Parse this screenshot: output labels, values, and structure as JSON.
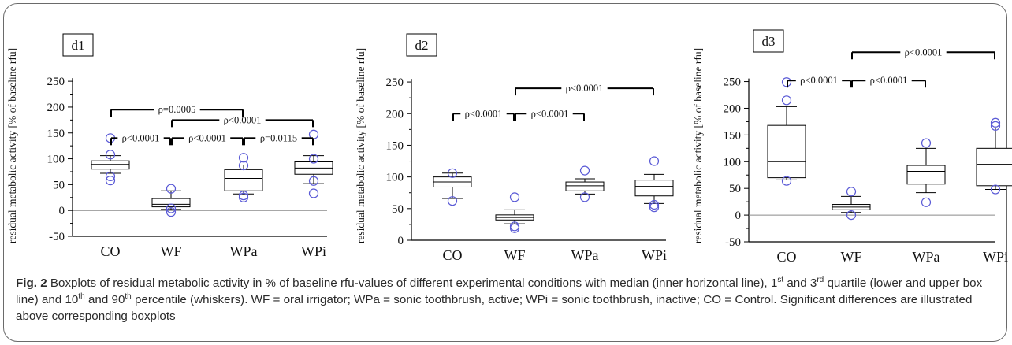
{
  "chart_data": [
    {
      "type": "boxplot",
      "panel_label": "d1",
      "ylabel": "residual metabolic activity [% of baseline rfu]",
      "ylim": [
        -50,
        270
      ],
      "yticks": [
        -50,
        0,
        50,
        100,
        150,
        200,
        250
      ],
      "categories": [
        "CO",
        "WF",
        "WPa",
        "WPi"
      ],
      "boxes": [
        {
          "category": "CO",
          "p10": 72,
          "q1": 80,
          "median": 89,
          "q3": 96,
          "p90": 106,
          "outliers": [
            140,
            108,
            58,
            66
          ]
        },
        {
          "category": "WF",
          "p10": 2,
          "q1": 7,
          "median": 12,
          "q3": 23,
          "p90": 38,
          "outliers": [
            42,
            -3,
            4
          ]
        },
        {
          "category": "WPa",
          "p10": 32,
          "q1": 38,
          "median": 62,
          "q3": 79,
          "p90": 88,
          "outliers": [
            102,
            87,
            25,
            29
          ]
        },
        {
          "category": "WPi",
          "p10": 52,
          "q1": 70,
          "median": 82,
          "q3": 94,
          "p90": 106,
          "outliers": [
            147,
            100,
            33,
            57
          ]
        }
      ],
      "significance": [
        {
          "from": "CO",
          "to": "WPa",
          "y": 195,
          "label": "ρ=0.0005"
        },
        {
          "from": "WF",
          "to": "WPi",
          "y": 175,
          "label": "ρ<0.0001"
        },
        {
          "from": "CO",
          "to": "WF",
          "y": 140,
          "label": "ρ<0.0001"
        },
        {
          "from": "WF",
          "to": "WPa",
          "y": 140,
          "label": "ρ<0.0001"
        },
        {
          "from": "WPa",
          "to": "WPi",
          "y": 140,
          "label": "ρ=0.0115"
        }
      ]
    },
    {
      "type": "boxplot",
      "panel_label": "d2",
      "ylabel": "residual metabolic activity [% of baseline rfu]",
      "ylim": [
        0,
        270
      ],
      "yticks": [
        0,
        50,
        100,
        150,
        200,
        250
      ],
      "categories": [
        "CO",
        "WF",
        "WPa",
        "WPi"
      ],
      "boxes": [
        {
          "category": "CO",
          "p10": 66,
          "q1": 84,
          "median": 92,
          "q3": 100,
          "p90": 106,
          "outliers": [
            106,
            62
          ]
        },
        {
          "category": "WF",
          "p10": 26,
          "q1": 32,
          "median": 36,
          "q3": 40,
          "p90": 48,
          "outliers": [
            68,
            22,
            19
          ]
        },
        {
          "category": "WPa",
          "p10": 73,
          "q1": 78,
          "median": 86,
          "q3": 92,
          "p90": 97,
          "outliers": [
            110,
            68
          ]
        },
        {
          "category": "WPi",
          "p10": 58,
          "q1": 70,
          "median": 85,
          "q3": 95,
          "p90": 104,
          "outliers": [
            125,
            56,
            52
          ]
        }
      ],
      "significance": [
        {
          "from": "WF",
          "to": "WPi",
          "y": 240,
          "label": "ρ<0.0001"
        },
        {
          "from": "CO",
          "to": "WF",
          "y": 200,
          "label": "ρ<0.0001"
        },
        {
          "from": "WF",
          "to": "WPa",
          "y": 200,
          "label": "ρ<0.0001"
        }
      ]
    },
    {
      "type": "boxplot",
      "panel_label": "d3",
      "ylabel": "residual metabolic activity [% of baseline rfu]",
      "ylim": [
        -50,
        270
      ],
      "yticks": [
        -50,
        0,
        50,
        100,
        150,
        200,
        250
      ],
      "categories": [
        "CO",
        "WF",
        "WPa",
        "WPi"
      ],
      "boxes": [
        {
          "category": "CO",
          "p10": 66,
          "q1": 70,
          "median": 100,
          "q3": 168,
          "p90": 203,
          "outliers": [
            249,
            215,
            64
          ]
        },
        {
          "category": "WF",
          "p10": 5,
          "q1": 10,
          "median": 15,
          "q3": 20,
          "p90": 35,
          "outliers": [
            44,
            0
          ]
        },
        {
          "category": "WPa",
          "p10": 42,
          "q1": 58,
          "median": 82,
          "q3": 93,
          "p90": 125,
          "outliers": [
            135,
            24
          ]
        },
        {
          "category": "WPi",
          "p10": 48,
          "q1": 55,
          "median": 95,
          "q3": 125,
          "p90": 163,
          "outliers": [
            173,
            167,
            48
          ]
        }
      ],
      "significance": [
        {
          "from": "WF",
          "to": "WPi",
          "y": 305,
          "label": "ρ<0.0001"
        },
        {
          "from": "CO",
          "to": "WF",
          "y": 252,
          "label": "ρ<0.0001"
        },
        {
          "from": "WF",
          "to": "WPa",
          "y": 252,
          "label": "ρ<0.0001"
        }
      ]
    }
  ],
  "caption": {
    "label": "Fig. 2",
    "parts": [
      {
        "t": " Boxplots of residual metabolic activity in % of baseline rfu-values of different experimental conditions with median (inner horizontal line), 1"
      },
      {
        "sup": "st"
      },
      {
        "t": " and 3"
      },
      {
        "sup": "rd"
      },
      {
        "t": " quartile (lower and upper box line) and 10"
      },
      {
        "sup": "th"
      },
      {
        "t": " and 90"
      },
      {
        "sup": "th"
      },
      {
        "t": " percentile (whiskers). WF = oral irrigator; WPa = sonic toothbrush, active; WPi = sonic toothbrush, inactive; CO = Control. Significant differences are illustrated above corresponding boxplots"
      }
    ]
  },
  "style": {
    "outlier_color": "#5a5ad6",
    "axis_color": "#000000",
    "zero_line_color": "#8a8a8a",
    "border_color": "#6a6a6a"
  }
}
